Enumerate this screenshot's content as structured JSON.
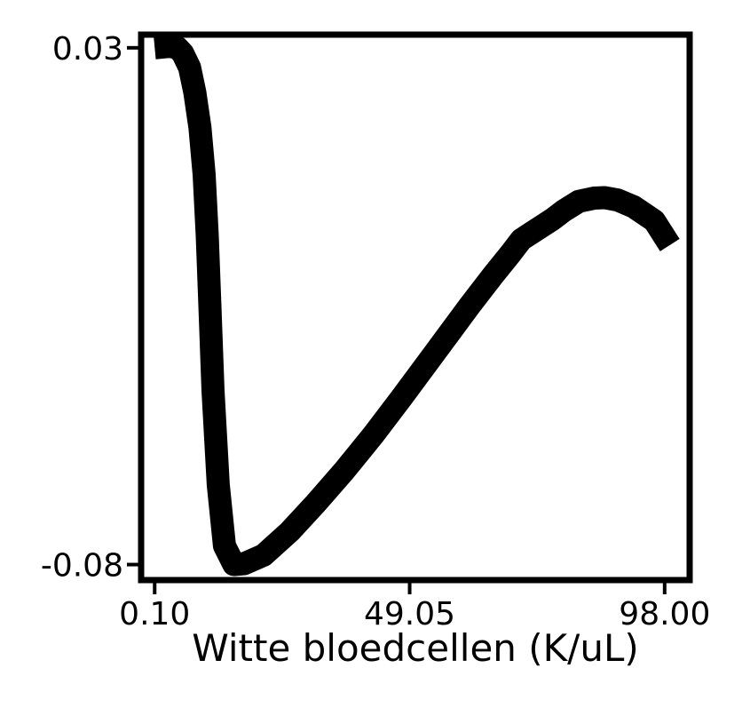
{
  "chart_data": {
    "type": "line",
    "title": "",
    "xlabel": "Witte bloedcellen (K/uL)",
    "ylabel": "",
    "xlim": [
      -2.5,
      102.8
    ],
    "ylim": [
      -0.0833,
      0.0328
    ],
    "xticks": [
      {
        "value": 0.1,
        "label": "0.10"
      },
      {
        "value": 49.05,
        "label": "49.05"
      },
      {
        "value": 98.0,
        "label": "98.00"
      }
    ],
    "yticks": [
      {
        "value": 0.03,
        "label": "0.03"
      },
      {
        "value": -0.08,
        "label": "-0.08"
      }
    ],
    "grid": false,
    "series": [
      {
        "color": "#000000",
        "x": [
          0.1,
          3.0,
          4.5,
          5.5,
          6.8,
          7.8,
          8.8,
          9.6,
          10.2,
          10.7,
          11.3,
          12.3,
          13.5,
          15.3,
          17.3,
          21.0,
          26.0,
          31.0,
          36.5,
          42.0,
          47.5,
          54.5,
          60.5,
          65.0,
          68.5,
          70.5,
          76.5,
          78.5,
          81.5,
          84.5,
          86.5,
          89.0,
          92.0,
          96.0,
          99.0
        ],
        "y": [
          0.03,
          0.0303,
          0.03,
          0.0288,
          0.0258,
          0.0205,
          0.013,
          0.003,
          -0.01,
          -0.025,
          -0.043,
          -0.063,
          -0.076,
          -0.08,
          -0.0798,
          -0.078,
          -0.073,
          -0.067,
          -0.06,
          -0.0525,
          -0.0445,
          -0.034,
          -0.025,
          -0.0185,
          -0.0137,
          -0.0108,
          -0.0065,
          -0.0048,
          -0.0027,
          -0.002,
          -0.0019,
          -0.0024,
          -0.0038,
          -0.0068,
          -0.012
        ]
      }
    ]
  }
}
